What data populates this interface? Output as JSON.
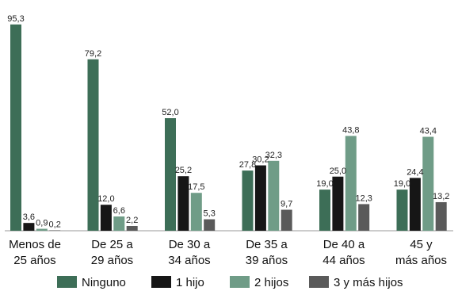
{
  "chart_data": {
    "type": "bar",
    "categories": [
      [
        "Menos de",
        "25 años"
      ],
      [
        "De 25 a",
        "29 años"
      ],
      [
        "De 30 a",
        "34 años"
      ],
      [
        "De 35 a",
        "39 años"
      ],
      [
        "De 40 a",
        "44 años"
      ],
      [
        "45 y",
        "más años"
      ]
    ],
    "series": [
      {
        "name": "Ninguno",
        "color": "#3d6e57",
        "values": [
          95.3,
          79.2,
          52.0,
          27.8,
          19.0,
          19.0
        ],
        "labels": [
          "95,3",
          "79,2",
          "52,0",
          "27,8",
          "19,0",
          "19,0"
        ]
      },
      {
        "name": "1 hijo",
        "color": "#161616",
        "values": [
          3.6,
          12.0,
          25.2,
          30.2,
          25.0,
          24.4
        ],
        "labels": [
          "3,6",
          "12,0",
          "25,2",
          "30,2",
          "25,0",
          "24,4"
        ]
      },
      {
        "name": "2 hijos",
        "color": "#6f9c87",
        "values": [
          0.9,
          6.6,
          17.5,
          32.3,
          43.8,
          43.4
        ],
        "labels": [
          "0,9",
          "6,6",
          "17,5",
          "32,3",
          "43,8",
          "43,4"
        ]
      },
      {
        "name": "3 y más hijos",
        "color": "#5a5a5a",
        "values": [
          0.2,
          2.2,
          5.3,
          9.7,
          12.3,
          13.2
        ],
        "labels": [
          "0,2",
          "2,2",
          "5,3",
          "9,7",
          "12,3",
          "13,2"
        ]
      }
    ],
    "ylim": [
      0,
      100
    ],
    "grid": false,
    "legend_position": "bottom"
  }
}
